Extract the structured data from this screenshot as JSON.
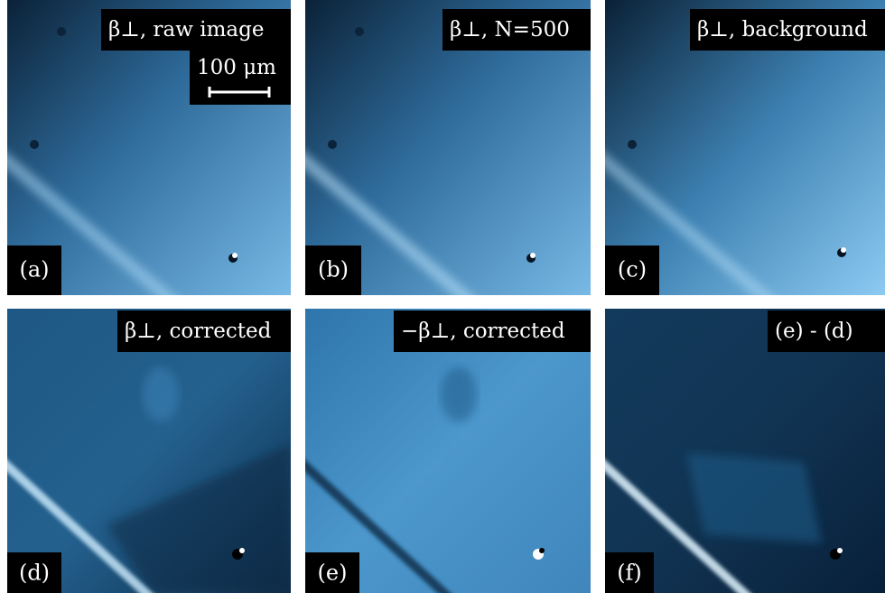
{
  "panels": [
    {
      "label": "(a)",
      "title": "β⊥, raw image",
      "scalebar": "100 μm"
    },
    {
      "label": "(b)",
      "title": "β⊥, N=500"
    },
    {
      "label": "(c)",
      "title": "β⊥, background"
    },
    {
      "label": "(d)",
      "title": "β⊥, corrected"
    },
    {
      "label": "(e)",
      "title": "−β⊥, corrected"
    },
    {
      "label": "(f)",
      "title": "(e) - (d)"
    }
  ]
}
